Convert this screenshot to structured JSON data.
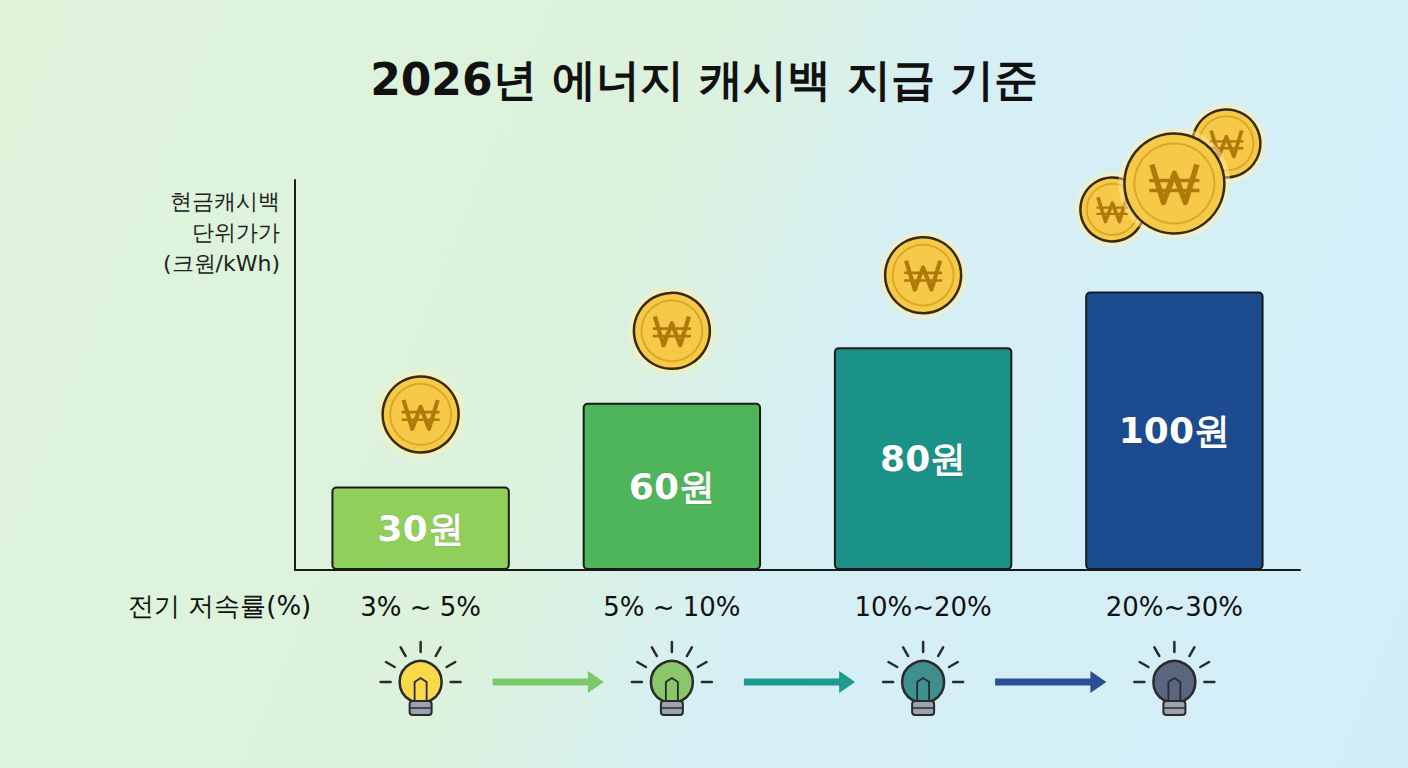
{
  "chart_data": {
    "type": "bar",
    "title": "2026년 에너지 캐시백 지급 기준",
    "xlabel": "전기 저속률(%)",
    "ylabel": "현금캐시백\n단위가가\n(크원/kWh)",
    "categories": [
      "3% ~ 5%",
      "5% ~ 10%",
      "10%~20%",
      "20%~30%"
    ],
    "values": [
      30,
      60,
      80,
      100
    ],
    "value_labels": [
      "30원",
      "60원",
      "80원",
      "100원"
    ],
    "colors": [
      "#8fcf5a",
      "#4fb55a",
      "#1b9287",
      "#1d4b8f"
    ],
    "ylim": [
      0,
      140
    ],
    "grid": false,
    "data_labels": true,
    "tick_labels": "x"
  }
}
